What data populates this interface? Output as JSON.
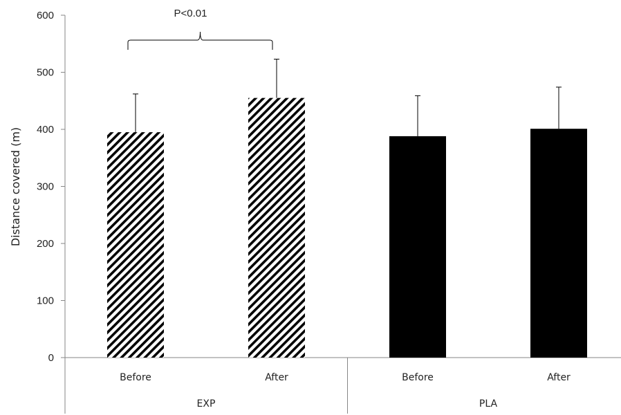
{
  "chart_data": {
    "type": "bar",
    "ylabel": "Distance covered (m)",
    "ylim": [
      0,
      600
    ],
    "yticks": [
      0,
      100,
      200,
      300,
      400,
      500,
      600
    ],
    "groups": [
      {
        "name": "EXP",
        "pattern": "hatched",
        "bars": [
          {
            "label": "Before",
            "value": 395,
            "error": 67
          },
          {
            "label": "After",
            "value": 455,
            "error": 68
          }
        ]
      },
      {
        "name": "PLA",
        "pattern": "solid",
        "bars": [
          {
            "label": "Before",
            "value": 388,
            "error": 71
          },
          {
            "label": "After",
            "value": 401,
            "error": 73
          }
        ]
      }
    ],
    "annotation": {
      "text": "P<0.01",
      "group": "EXP",
      "spans": [
        "Before",
        "After"
      ]
    },
    "grid": false,
    "bar_color": "#000000"
  }
}
